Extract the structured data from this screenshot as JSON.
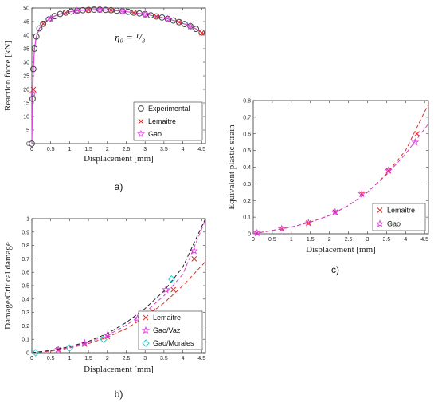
{
  "colors": {
    "experimental": "#444444",
    "lemaitre": "#e0302a",
    "gao": "#e040e0",
    "gao_morales": "#33cccc",
    "dashed_black": "#222222",
    "dashed_red": "#e0302a",
    "dashed_magenta": "#cc44cc"
  },
  "chart_data": [
    {
      "id": "a",
      "type": "scatter",
      "panel_label": "a)",
      "annotation": "η₀ = ¹/₃",
      "xlabel": "Displacement [mm]",
      "ylabel": "Reaction force [kN]",
      "xlim": [
        0,
        4.6
      ],
      "ylim": [
        0,
        50
      ],
      "xticks": [
        0,
        0.5,
        1,
        1.5,
        2,
        2.5,
        3,
        3.5,
        4,
        4.5
      ],
      "xtick_labels": [
        "0",
        "0.5",
        "1",
        "1.5",
        "2",
        "2.5",
        "3",
        "3.5",
        "4",
        "4.5"
      ],
      "yticks": [
        0,
        5,
        10,
        15,
        20,
        25,
        30,
        35,
        40,
        45,
        50
      ],
      "ytick_labels": [
        "0",
        "5",
        "10",
        "15",
        "20",
        "25",
        "30",
        "35",
        "40",
        "45",
        "50"
      ],
      "legend_position": "bottom-right",
      "series": [
        {
          "name": "Experimental",
          "marker": "circle",
          "color_key": "experimental",
          "x": [
            0.0,
            0.02,
            0.04,
            0.07,
            0.12,
            0.2,
            0.3,
            0.45,
            0.6,
            0.75,
            0.9,
            1.05,
            1.2,
            1.35,
            1.5,
            1.65,
            1.8,
            1.95,
            2.1,
            2.25,
            2.4,
            2.55,
            2.7,
            2.85,
            3.0,
            3.15,
            3.3,
            3.45,
            3.6,
            3.75,
            3.9,
            4.05,
            4.2,
            4.35,
            4.5
          ],
          "y": [
            0.0,
            16.5,
            27.5,
            35.0,
            39.5,
            42.5,
            44.2,
            45.8,
            47.0,
            47.8,
            48.3,
            48.7,
            49.0,
            49.2,
            49.3,
            49.4,
            49.4,
            49.3,
            49.2,
            49.0,
            48.8,
            48.6,
            48.3,
            48.0,
            47.7,
            47.3,
            46.9,
            46.5,
            46.0,
            45.4,
            44.8,
            44.1,
            43.3,
            42.3,
            41.0
          ]
        },
        {
          "name": "Lemaitre",
          "marker": "x",
          "color_key": "lemaitre",
          "x": [
            0.04,
            0.3,
            0.9,
            1.5,
            2.1,
            2.7,
            3.3,
            3.9,
            4.5
          ],
          "y": [
            20.0,
            44.2,
            48.3,
            49.3,
            49.2,
            48.3,
            46.9,
            44.8,
            40.8
          ]
        },
        {
          "name": "Gao",
          "marker": "star",
          "color_key": "gao",
          "x": [
            0.03,
            0.5,
            1.2,
            1.8,
            2.4,
            3.0,
            3.6,
            4.2
          ],
          "y": [
            18.5,
            46.0,
            49.0,
            49.4,
            48.8,
            47.7,
            46.0,
            43.3
          ]
        }
      ],
      "curve": {
        "color_key": "gao",
        "x": [
          0.0,
          0.02,
          0.04,
          0.07,
          0.12,
          0.2,
          0.3,
          0.45,
          0.6,
          0.75,
          0.9,
          1.05,
          1.2,
          1.35,
          1.5,
          1.65,
          1.8,
          1.95,
          2.1,
          2.25,
          2.4,
          2.55,
          2.7,
          2.85,
          3.0,
          3.15,
          3.3,
          3.45,
          3.6,
          3.75,
          3.9,
          4.05,
          4.2,
          4.35,
          4.5,
          4.6
        ],
        "y": [
          0.0,
          16.5,
          27.5,
          35.0,
          39.5,
          42.5,
          44.2,
          45.8,
          47.0,
          47.8,
          48.3,
          48.7,
          49.0,
          49.2,
          49.3,
          49.4,
          49.4,
          49.3,
          49.2,
          49.0,
          48.8,
          48.6,
          48.3,
          48.0,
          47.7,
          47.3,
          46.9,
          46.5,
          46.0,
          45.4,
          44.8,
          44.1,
          43.3,
          42.3,
          41.0,
          40.2
        ]
      }
    },
    {
      "id": "b",
      "type": "line",
      "panel_label": "b)",
      "xlabel": "Displacement [mm]",
      "ylabel": "Damage/Critical damage",
      "xlim": [
        0,
        4.6
      ],
      "ylim": [
        0,
        1
      ],
      "xticks": [
        0,
        0.5,
        1,
        1.5,
        2,
        2.5,
        3,
        3.5,
        4,
        4.5
      ],
      "xtick_labels": [
        "0",
        "0.5",
        "1",
        "1.5",
        "2",
        "2.5",
        "3",
        "3.5",
        "4",
        "4.5"
      ],
      "yticks": [
        0,
        0.1,
        0.2,
        0.3,
        0.4,
        0.5,
        0.6,
        0.7,
        0.8,
        0.9,
        1
      ],
      "ytick_labels": [
        "0",
        "0.1",
        "0.2",
        "0.3",
        "0.4",
        "0.5",
        "0.6",
        "0.7",
        "0.8",
        "0.9",
        "1"
      ],
      "legend_position": "bottom-right",
      "series": [
        {
          "name": "Lemaitre",
          "marker": "x",
          "color_key": "lemaitre",
          "dash_color_key": "dashed_red",
          "x": [
            0.1,
            0.5,
            1.0,
            1.5,
            2.0,
            2.5,
            3.0,
            3.5,
            4.0,
            4.6
          ],
          "y": [
            0.0,
            0.012,
            0.035,
            0.068,
            0.115,
            0.18,
            0.265,
            0.37,
            0.5,
            0.68
          ],
          "line_x": [
            0,
            0.5,
            1.0,
            1.5,
            2.0,
            2.5,
            3.0,
            3.5,
            4.0,
            4.6
          ],
          "line_y": [
            0.0,
            0.012,
            0.035,
            0.068,
            0.115,
            0.18,
            0.265,
            0.37,
            0.5,
            0.68
          ],
          "marker_x": [
            0.7,
            1.4,
            2.0,
            3.2,
            3.75,
            4.3
          ],
          "marker_y": [
            0.022,
            0.063,
            0.12,
            0.31,
            0.47,
            0.7
          ]
        },
        {
          "name": "Gao/Vaz",
          "marker": "star",
          "color_key": "gao",
          "dash_color_key": "dashed_magenta",
          "line_x": [
            0,
            0.5,
            1.0,
            1.5,
            2.0,
            2.5,
            3.0,
            3.5,
            4.0,
            4.6
          ],
          "line_y": [
            0.0,
            0.015,
            0.04,
            0.078,
            0.13,
            0.205,
            0.3,
            0.425,
            0.585,
            0.99
          ],
          "marker_x": [
            0.7,
            1.4,
            2.0,
            2.8,
            3.55,
            4.3
          ],
          "marker_y": [
            0.025,
            0.072,
            0.13,
            0.255,
            0.47,
            0.76
          ]
        },
        {
          "name": "Gao/Morales",
          "marker": "diamond",
          "color_key": "gao_morales",
          "dash_color_key": "dashed_black",
          "line_x": [
            0,
            0.5,
            1.0,
            1.5,
            2.0,
            2.5,
            3.0,
            3.5,
            4.0,
            4.6
          ],
          "line_y": [
            0.0,
            0.017,
            0.045,
            0.085,
            0.142,
            0.225,
            0.33,
            0.46,
            0.64,
            1.0
          ],
          "marker_x": [
            0.1,
            1.0,
            1.9,
            3.7
          ],
          "marker_y": [
            0.0,
            0.035,
            0.1,
            0.55
          ]
        }
      ]
    },
    {
      "id": "c",
      "type": "line",
      "panel_label": "c)",
      "xlabel": "Displacement [mm]",
      "ylabel": "Equivalent plastic strain",
      "xlim": [
        0,
        4.6
      ],
      "ylim": [
        0,
        0.8
      ],
      "xticks": [
        0,
        0.5,
        1,
        1.5,
        2,
        2.5,
        3,
        3.5,
        4,
        4.5
      ],
      "xtick_labels": [
        "0",
        "0.5",
        "1",
        "1.5",
        "2",
        "2.5",
        "3",
        "3.5",
        "4",
        "4.5"
      ],
      "yticks": [
        0,
        0.1,
        0.2,
        0.3,
        0.4,
        0.5,
        0.6,
        0.7,
        0.8
      ],
      "ytick_labels": [
        "0",
        "0.1",
        "0.2",
        "0.3",
        "0.4",
        "0.5",
        "0.6",
        "0.7",
        "0.8"
      ],
      "legend_position": "bottom-right",
      "series": [
        {
          "name": "Lemaitre",
          "marker": "x",
          "color_key": "lemaitre",
          "dash_color_key": "dashed_red",
          "line_x": [
            0,
            0.5,
            1.0,
            1.5,
            2.0,
            2.5,
            3.0,
            3.5,
            4.0,
            4.6
          ],
          "line_y": [
            0.0,
            0.02,
            0.04,
            0.07,
            0.11,
            0.17,
            0.25,
            0.36,
            0.5,
            0.78
          ],
          "marker_x": [
            0.1,
            0.75,
            1.45,
            2.15,
            2.85,
            3.55,
            4.3
          ],
          "marker_y": [
            0.005,
            0.03,
            0.065,
            0.13,
            0.24,
            0.38,
            0.6
          ]
        },
        {
          "name": "Gao",
          "marker": "star",
          "color_key": "gao",
          "dash_color_key": "dashed_magenta",
          "line_x": [
            0,
            0.5,
            1.0,
            1.5,
            2.0,
            2.5,
            3.0,
            3.5,
            4.0,
            4.6
          ],
          "line_y": [
            0.0,
            0.02,
            0.04,
            0.07,
            0.11,
            0.17,
            0.25,
            0.355,
            0.48,
            0.66
          ],
          "marker_x": [
            0.1,
            0.75,
            1.45,
            2.15,
            2.85,
            3.55,
            4.25
          ],
          "marker_y": [
            0.005,
            0.03,
            0.065,
            0.13,
            0.24,
            0.38,
            0.55
          ]
        }
      ]
    }
  ]
}
